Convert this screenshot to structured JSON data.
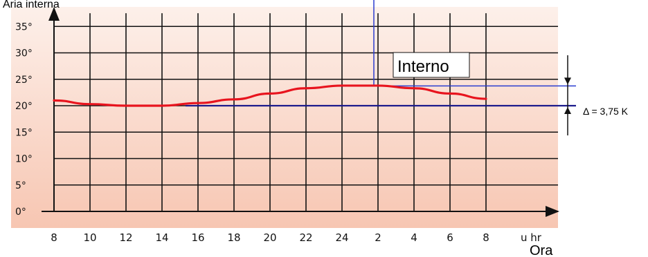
{
  "chart_data": {
    "type": "line",
    "title": "Aria interna",
    "xlabel": "Ora",
    "x_unit_label": "u hr",
    "x_ticks": [
      "8",
      "10",
      "12",
      "14",
      "16",
      "18",
      "20",
      "22",
      "24",
      "2",
      "4",
      "6",
      "8"
    ],
    "y_ticks": [
      "0°",
      "5°",
      "10°",
      "15°",
      "20°",
      "25°",
      "30°",
      "35°"
    ],
    "ylim": [
      0,
      37.5
    ],
    "grid": true,
    "series": [
      {
        "name": "Interno",
        "color": "#e8141e",
        "x": [
          "8",
          "10",
          "12",
          "14",
          "16",
          "18",
          "20",
          "22",
          "24",
          "1",
          "2",
          "4",
          "6",
          "8"
        ],
        "values": [
          21.0,
          20.3,
          20.0,
          20.0,
          20.5,
          21.2,
          22.3,
          23.3,
          23.8,
          23.8,
          23.8,
          23.3,
          22.3,
          21.3
        ]
      }
    ],
    "reference_line": {
      "value": 20,
      "color": "#1a1a8c"
    },
    "peak_line": {
      "value": 23.75,
      "color": "#2a3ccf"
    },
    "annotation": "Δ = 3,75 K"
  },
  "colors": {
    "grid": "#111111",
    "background_top": "#fdf0ea",
    "background_bottom": "#f7c6b2"
  }
}
